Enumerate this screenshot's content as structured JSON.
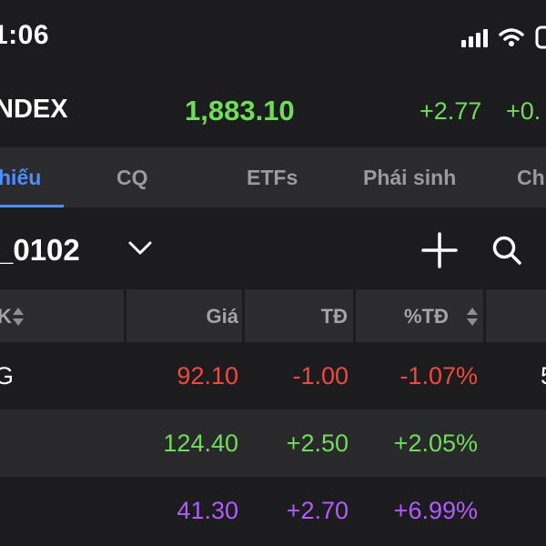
{
  "status_bar": {
    "time": "1:06"
  },
  "index": {
    "name": "NDEX",
    "value": "1,883.10",
    "change": "+2.77",
    "change_pct": "+0.",
    "color": "#6fdc5a"
  },
  "tabs": [
    {
      "label": "hiếu",
      "active": true
    },
    {
      "label": "CQ"
    },
    {
      "label": "ETFs"
    },
    {
      "label": "Phái sinh"
    },
    {
      "label": "Ch"
    }
  ],
  "watchlist": {
    "name": "_0102"
  },
  "table": {
    "headers": {
      "code": "K",
      "price": "Giá",
      "change": "TĐ",
      "change_pct": "%TĐ"
    },
    "rows": [
      {
        "code": "G",
        "price": "92.10",
        "change": "-1.00",
        "change_pct": "-1.07%",
        "extra": "5",
        "color": "#f0493f"
      },
      {
        "code": "",
        "price": "124.40",
        "change": "+2.50",
        "change_pct": "+2.05%",
        "extra": "",
        "color": "#6fdc5a"
      },
      {
        "code": "",
        "price": "41.30",
        "change": "+2.70",
        "change_pct": "+6.99%",
        "extra": "",
        "color": "#b15bff"
      }
    ]
  },
  "colors": {
    "up": "#6fdc5a",
    "down": "#f0493f",
    "ceiling": "#b15bff",
    "accent": "#4c8dff"
  },
  "icons": [
    "signal-icon",
    "wifi-icon",
    "battery-icon",
    "chevron-down-icon",
    "plus-icon",
    "search-icon",
    "sort-icon"
  ]
}
